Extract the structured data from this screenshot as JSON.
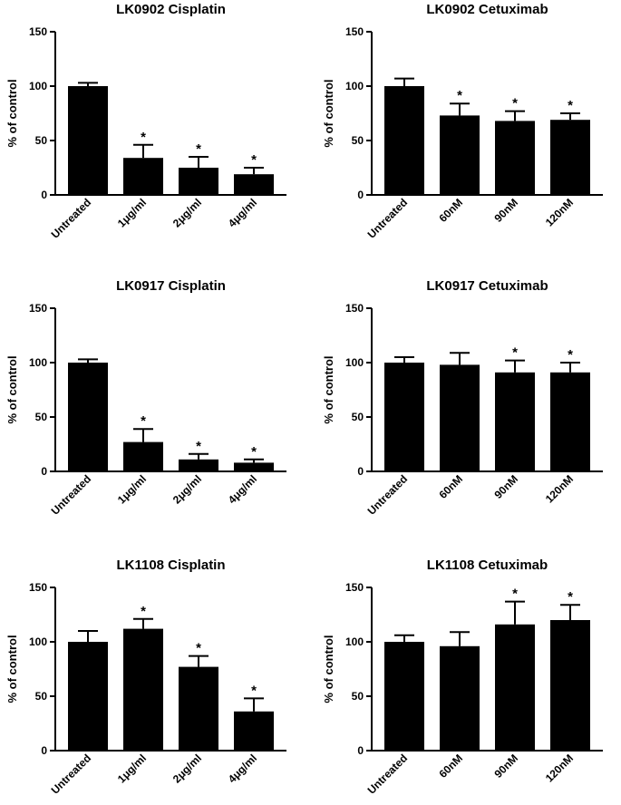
{
  "colors": {
    "bar": "#000000",
    "axis": "#000000",
    "background": "#ffffff"
  },
  "chart_data": [
    {
      "type": "bar",
      "title": "LK0902 Cisplatin",
      "ylabel": "% of control",
      "xlabel": "",
      "ylim": [
        0,
        150
      ],
      "yticks": [
        0,
        50,
        100,
        150
      ],
      "categories": [
        "Untreated",
        "1μg/ml",
        "2μg/ml",
        "4μg/ml"
      ],
      "values": [
        100,
        34,
        25,
        19
      ],
      "errors": [
        3,
        12,
        10,
        6
      ],
      "significance": [
        "",
        "*",
        "*",
        "*"
      ]
    },
    {
      "type": "bar",
      "title": "LK0902  Cetuximab",
      "ylabel": "% of control",
      "xlabel": "",
      "ylim": [
        0,
        150
      ],
      "yticks": [
        0,
        50,
        100,
        150
      ],
      "categories": [
        "Untreated",
        "60nM",
        "90nM",
        "120nM"
      ],
      "values": [
        100,
        73,
        68,
        69
      ],
      "errors": [
        7,
        11,
        9,
        6
      ],
      "significance": [
        "",
        "*",
        "*",
        "*"
      ]
    },
    {
      "type": "bar",
      "title": "LK0917 Cisplatin",
      "ylabel": "% of control",
      "xlabel": "",
      "ylim": [
        0,
        150
      ],
      "yticks": [
        0,
        50,
        100,
        150
      ],
      "categories": [
        "Untreated",
        "1μg/ml",
        "2μg/ml",
        "4μg/ml"
      ],
      "values": [
        100,
        27,
        11,
        8
      ],
      "errors": [
        3,
        12,
        5,
        3
      ],
      "significance": [
        "",
        "*",
        "*",
        "*"
      ]
    },
    {
      "type": "bar",
      "title": "LK0917 Cetuximab",
      "ylabel": "% of control",
      "xlabel": "",
      "ylim": [
        0,
        150
      ],
      "yticks": [
        0,
        50,
        100,
        150
      ],
      "categories": [
        "Untreated",
        "60nM",
        "90nM",
        "120nM"
      ],
      "values": [
        100,
        98,
        91,
        91
      ],
      "errors": [
        5,
        11,
        11,
        9
      ],
      "significance": [
        "",
        "",
        "*",
        "*"
      ]
    },
    {
      "type": "bar",
      "title": "LK1108 Cisplatin",
      "ylabel": "% of control",
      "xlabel": "",
      "ylim": [
        0,
        150
      ],
      "yticks": [
        0,
        50,
        100,
        150
      ],
      "categories": [
        "Untreated",
        "1μg/ml",
        "2μg/ml",
        "4μg/ml"
      ],
      "values": [
        100,
        112,
        77,
        36
      ],
      "errors": [
        10,
        9,
        10,
        12
      ],
      "significance": [
        "",
        "*",
        "*",
        "*"
      ]
    },
    {
      "type": "bar",
      "title": "LK1108 Cetuximab",
      "ylabel": "% of control",
      "xlabel": "",
      "ylim": [
        0,
        150
      ],
      "yticks": [
        0,
        50,
        100,
        150
      ],
      "categories": [
        "Untreated",
        "60nM",
        "90nM",
        "120nM"
      ],
      "values": [
        100,
        96,
        116,
        120
      ],
      "errors": [
        6,
        13,
        21,
        14
      ],
      "significance": [
        "",
        "",
        "*",
        "*"
      ]
    }
  ]
}
